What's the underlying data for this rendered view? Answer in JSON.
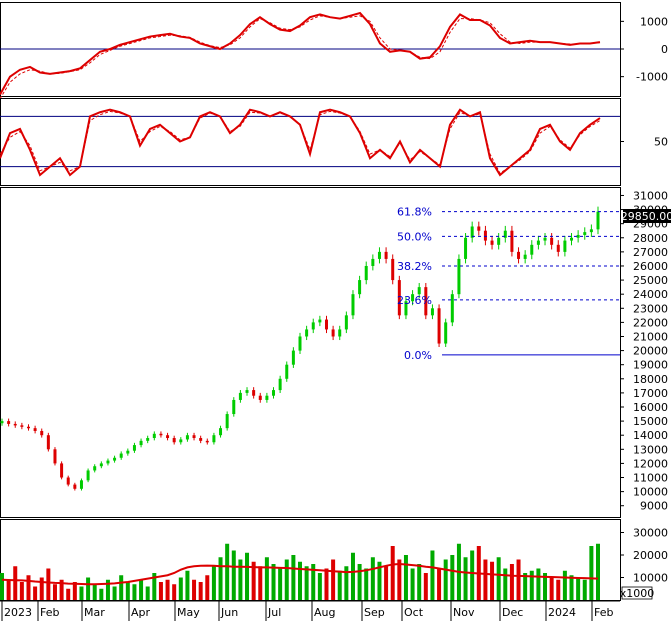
{
  "chart_data": [
    {
      "panel": "oscillator-top",
      "type": "line",
      "y_ticks": [
        "1000",
        "0",
        "-1000"
      ],
      "ylim": [
        -1700,
        1700
      ],
      "reference_lines": [
        0
      ],
      "series": [
        {
          "color": "#dd0000",
          "style": "solid",
          "x": [
            0,
            10,
            20,
            30,
            40,
            50,
            60,
            70,
            80,
            90,
            100,
            110,
            120,
            130,
            140,
            150,
            160,
            170,
            180,
            190,
            200,
            210,
            220,
            230,
            240,
            250,
            260,
            270,
            280,
            290,
            300,
            310,
            320,
            330,
            340,
            350,
            360,
            370,
            380,
            390,
            400,
            410,
            420,
            430,
            440,
            450,
            460,
            470,
            480,
            490,
            500,
            510,
            520,
            530,
            540,
            550,
            560,
            570,
            580,
            590,
            600
          ],
          "y": [
            -1650,
            -1000,
            -750,
            -650,
            -850,
            -900,
            -850,
            -800,
            -700,
            -400,
            -100,
            0,
            150,
            250,
            350,
            450,
            500,
            550,
            450,
            400,
            200,
            100,
            0,
            200,
            500,
            900,
            1150,
            900,
            700,
            650,
            850,
            1150,
            1250,
            1150,
            1100,
            1200,
            1300,
            900,
            200,
            -100,
            -50,
            -100,
            -350,
            -300,
            100,
            800,
            1250,
            1050,
            1050,
            850,
            400,
            200,
            250,
            300,
            250,
            250,
            200,
            150,
            200,
            200,
            250
          ]
        },
        {
          "color": "#dd0000",
          "style": "dashed",
          "x": [
            0,
            10,
            20,
            30,
            40,
            50,
            60,
            70,
            80,
            90,
            100,
            110,
            120,
            130,
            140,
            150,
            160,
            170,
            180,
            190,
            200,
            210,
            220,
            230,
            240,
            250,
            260,
            270,
            280,
            290,
            300,
            310,
            320,
            330,
            340,
            350,
            360,
            370,
            380,
            390,
            400,
            410,
            420,
            430,
            440,
            450,
            460,
            470,
            480,
            490,
            500,
            510,
            520,
            530,
            540,
            550,
            560,
            570,
            580,
            590,
            600
          ],
          "y": [
            -1800,
            -1200,
            -900,
            -750,
            -800,
            -900,
            -880,
            -820,
            -750,
            -500,
            -200,
            -50,
            100,
            200,
            300,
            400,
            450,
            500,
            480,
            420,
            250,
            120,
            50,
            150,
            400,
            800,
            1100,
            950,
            750,
            700,
            800,
            1050,
            1200,
            1150,
            1100,
            1150,
            1200,
            1000,
            400,
            0,
            -50,
            -100,
            -300,
            -350,
            -100,
            600,
            1100,
            1100,
            1050,
            950,
            550,
            250,
            200,
            250,
            250,
            250,
            200,
            180,
            180,
            200,
            230
          ]
        }
      ]
    },
    {
      "panel": "oscillator-middle",
      "type": "line",
      "y_ticks": [
        "50"
      ],
      "ylim": [
        -2,
        102
      ],
      "reference_lines": [
        80,
        20
      ],
      "series": [
        {
          "color": "#dd0000",
          "style": "solid",
          "x": [
            0,
            10,
            20,
            30,
            40,
            50,
            60,
            70,
            80,
            90,
            100,
            110,
            120,
            130,
            140,
            150,
            160,
            170,
            180,
            190,
            200,
            210,
            220,
            230,
            240,
            250,
            260,
            270,
            280,
            290,
            300,
            310,
            320,
            330,
            340,
            350,
            360,
            370,
            380,
            390,
            400,
            410,
            420,
            430,
            440,
            450,
            460,
            470,
            480,
            490,
            500,
            510,
            520,
            530,
            540,
            550,
            560,
            570,
            580,
            590,
            600
          ],
          "y": [
            30,
            60,
            65,
            40,
            10,
            20,
            30,
            10,
            20,
            80,
            85,
            88,
            85,
            80,
            45,
            65,
            70,
            60,
            50,
            55,
            80,
            85,
            80,
            60,
            70,
            88,
            85,
            80,
            85,
            80,
            70,
            35,
            85,
            88,
            85,
            80,
            60,
            30,
            40,
            30,
            50,
            25,
            40,
            30,
            20,
            70,
            88,
            80,
            85,
            30,
            10,
            20,
            30,
            40,
            65,
            70,
            50,
            40,
            60,
            70,
            78
          ]
        },
        {
          "color": "#dd0000",
          "style": "dashed",
          "x": [
            0,
            10,
            20,
            30,
            40,
            50,
            60,
            70,
            80,
            90,
            100,
            110,
            120,
            130,
            140,
            150,
            160,
            170,
            180,
            190,
            200,
            210,
            220,
            230,
            240,
            250,
            260,
            270,
            280,
            290,
            300,
            310,
            320,
            330,
            340,
            350,
            360,
            370,
            380,
            390,
            400,
            410,
            420,
            430,
            440,
            450,
            460,
            470,
            480,
            490,
            500,
            510,
            520,
            530,
            540,
            550,
            560,
            570,
            580,
            590,
            600
          ],
          "y": [
            35,
            55,
            62,
            45,
            15,
            20,
            25,
            15,
            20,
            75,
            82,
            86,
            84,
            80,
            50,
            62,
            68,
            62,
            52,
            55,
            78,
            84,
            80,
            62,
            68,
            85,
            84,
            80,
            84,
            80,
            70,
            40,
            82,
            86,
            84,
            80,
            62,
            35,
            40,
            32,
            48,
            28,
            38,
            30,
            22,
            65,
            85,
            80,
            83,
            35,
            12,
            20,
            28,
            38,
            60,
            68,
            52,
            42,
            58,
            68,
            75
          ]
        }
      ]
    },
    {
      "panel": "price",
      "type": "candlestick",
      "y_ticks": [
        "31000",
        "30000",
        "29000",
        "28000",
        "27000",
        "26000",
        "25000",
        "24000",
        "23000",
        "22000",
        "21000",
        "20000",
        "19000",
        "18000",
        "17000",
        "16000",
        "15000",
        "14000",
        "13000",
        "12000",
        "11000",
        "10000",
        "9000"
      ],
      "ylim": [
        8200,
        31600
      ],
      "price_label": "29850.00",
      "close": [
        15000,
        14800,
        14700,
        14600,
        14500,
        14300,
        14000,
        13000,
        12000,
        11000,
        10500,
        10200,
        10800,
        11500,
        11800,
        12000,
        12200,
        12400,
        12700,
        12900,
        13300,
        13600,
        13800,
        14100,
        14000,
        13800,
        13500,
        13700,
        14000,
        13800,
        13600,
        13500,
        14000,
        14500,
        15500,
        16500,
        17000,
        17200,
        16800,
        16500,
        16800,
        17200,
        18000,
        19000,
        20000,
        21000,
        21500,
        22000,
        22200,
        21500,
        21000,
        21500,
        22500,
        24000,
        25000,
        26000,
        26500,
        27000,
        26500,
        25000,
        22500,
        23500,
        24000,
        24500,
        22500,
        23000,
        20500,
        22000,
        24000,
        26500,
        28000,
        28800,
        28500,
        27800,
        27500,
        28000,
        28500,
        27000,
        26500,
        26800,
        27500,
        27800,
        28000,
        27500,
        27000,
        27800,
        28000,
        28200,
        28400,
        28600,
        29850
      ],
      "fibonacci": [
        {
          "label": "61.8%",
          "price": 29850
        },
        {
          "label": "50.0%",
          "price": 28100
        },
        {
          "label": "38.2%",
          "price": 26000
        },
        {
          "label": "23.6%",
          "price": 23600
        },
        {
          "label": "0.0%",
          "price": 19700
        }
      ]
    },
    {
      "panel": "volume",
      "type": "bar",
      "y_ticks": [
        "30000",
        "20000",
        "10000"
      ],
      "ylim": [
        0,
        36000
      ],
      "unit_label": "x1000",
      "values": [
        12000,
        9000,
        15000,
        8000,
        11000,
        6000,
        10000,
        14000,
        7000,
        9000,
        5000,
        8000,
        6000,
        10000,
        7000,
        5000,
        9000,
        6000,
        11000,
        8000,
        7000,
        9000,
        6000,
        12000,
        8000,
        9000,
        7000,
        10000,
        13000,
        9000,
        8000,
        11000,
        15000,
        19000,
        25000,
        22000,
        18000,
        21000,
        17000,
        15000,
        19000,
        16000,
        14000,
        18000,
        20000,
        17000,
        15000,
        16000,
        12000,
        14000,
        18000,
        13000,
        15000,
        21000,
        16000,
        14000,
        19000,
        17000,
        15000,
        24000,
        18000,
        20000,
        14000,
        16000,
        12000,
        22000,
        14000,
        18000,
        20000,
        25000,
        19000,
        22000,
        24000,
        18000,
        17000,
        19000,
        14000,
        16000,
        18000,
        12000,
        13000,
        14000,
        12000,
        10000,
        9000,
        13000,
        11000,
        10000,
        9000,
        24000,
        25000
      ],
      "ma": [
        9000,
        8900,
        8800,
        8700,
        8500,
        8200,
        8000,
        7800,
        7600,
        7500,
        7300,
        7200,
        7100,
        7000,
        7000,
        7100,
        7200,
        7400,
        7700,
        8000,
        8500,
        9000,
        9500,
        10000,
        10500,
        11000,
        12000,
        13500,
        14500,
        15000,
        15200,
        15300,
        15200,
        15000,
        15000,
        14800,
        14800,
        14700,
        14600,
        14500,
        14500,
        14400,
        14300,
        14200,
        14000,
        13800,
        13600,
        13400,
        13200,
        13000,
        12800,
        12600,
        12400,
        12500,
        12800,
        13200,
        13800,
        14500,
        15200,
        15800,
        16000,
        15800,
        15500,
        15200,
        14800,
        14500,
        14000,
        13500,
        13000,
        12500,
        12200,
        12000,
        11800,
        11600,
        11400,
        11200,
        11000,
        10800,
        10700,
        10600,
        10500,
        10400,
        10300,
        10200,
        10100,
        10000,
        9900,
        9800,
        9700,
        9600,
        9500
      ]
    }
  ],
  "time_axis": {
    "labels": [
      "2023",
      "Feb",
      "Mar",
      "Apr",
      "May",
      "Jun",
      "Jul",
      "Aug",
      "Sep",
      "Oct",
      "Nov",
      "Dec",
      "2024",
      "Feb"
    ]
  },
  "colors": {
    "up": "#00cc00",
    "down": "#dd0000",
    "volume_up": "#00aa00",
    "volume_down": "#dd0000",
    "volume_ma": "#dd0000",
    "reference_line": "#000080",
    "fib_line": "#0000cc",
    "price_label_bg": "#000000",
    "price_label_fg": "#ffffff"
  }
}
